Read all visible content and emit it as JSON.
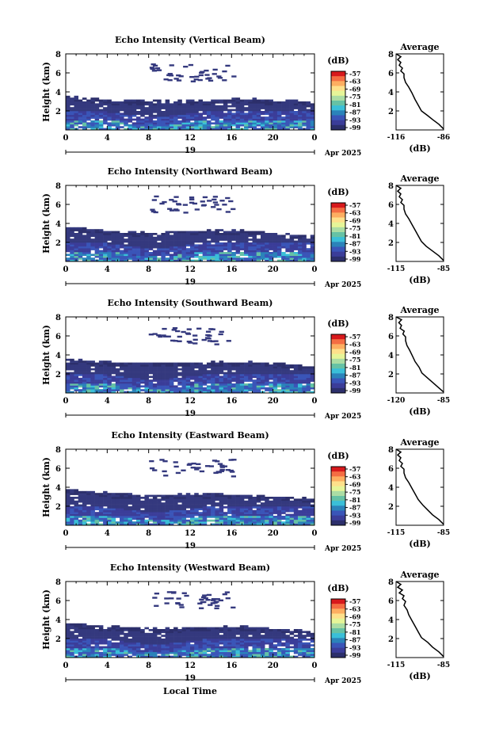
{
  "figure": {
    "bottom_xlabel": "Local Time",
    "date_label": "Apr 2025",
    "colorbar_unit": "(dB)",
    "colorbar_ticks": [
      "-57",
      "-63",
      "-69",
      "-75",
      "-81",
      "-87",
      "-93",
      "-99"
    ],
    "colorbar_colors": [
      "#d7191c",
      "#f46d43",
      "#fdae61",
      "#fee08b",
      "#e6f598",
      "#abdda4",
      "#66c2a5",
      "#3abfd8",
      "#2b83ba",
      "#3a55b8",
      "#3b3d99",
      "#2c2f6b"
    ],
    "echo_color": "#34397e",
    "average_title": "Average",
    "average_xlabel": "(dB)"
  },
  "chart_data": [
    {
      "type": "heatmap",
      "title": "Echo Intensity (Vertical Beam)",
      "ylabel": "Height (km)",
      "xlabel": "",
      "x_ticks": [
        "0",
        "4",
        "8",
        "12",
        "16",
        "20",
        "0"
      ],
      "x_center_label": "19",
      "xlim": [
        0,
        24
      ],
      "ylim": [
        0,
        8
      ],
      "y_ticks": [
        "2",
        "4",
        "6",
        "8"
      ],
      "colorbar_range_dB": [
        -99,
        -57
      ],
      "layer_top_km": [
        3.5,
        3.4,
        3.3,
        3.2,
        3.1,
        3.0,
        3.0,
        3.0,
        3.0,
        3.0,
        3.0,
        3.0,
        3.0,
        3.0,
        3.1,
        3.1,
        3.2,
        3.2,
        3.2,
        3.1,
        3.0,
        3.0,
        3.0,
        2.9,
        2.8
      ],
      "average_profile": {
        "title": "Average",
        "xlabel": "(dB)",
        "x_ticks": [
          "-116",
          "-86"
        ],
        "xlim": [
          -116,
          -86
        ],
        "ylim": [
          0,
          8
        ],
        "y_ticks": [
          "2",
          "4",
          "6",
          "8"
        ],
        "points": [
          [
            -86,
            0.1
          ],
          [
            -89,
            0.6
          ],
          [
            -93,
            1.1
          ],
          [
            -96,
            1.5
          ],
          [
            -100,
            2.0
          ],
          [
            -102,
            2.6
          ],
          [
            -104,
            3.2
          ],
          [
            -106,
            3.9
          ],
          [
            -108,
            4.5
          ],
          [
            -110,
            5.0
          ],
          [
            -111,
            5.5
          ],
          [
            -111,
            5.9
          ],
          [
            -113,
            6.2
          ],
          [
            -112,
            6.5
          ],
          [
            -114,
            6.8
          ],
          [
            -113,
            7.1
          ],
          [
            -115,
            7.4
          ],
          [
            -113,
            7.7
          ],
          [
            -116,
            8.0
          ]
        ]
      }
    },
    {
      "type": "heatmap",
      "title": "Echo Intensity (Northward Beam)",
      "ylabel": "Height (km)",
      "xlabel": "",
      "x_ticks": [
        "0",
        "4",
        "8",
        "12",
        "16",
        "20",
        "0"
      ],
      "x_center_label": "19",
      "xlim": [
        0,
        24
      ],
      "ylim": [
        0,
        8
      ],
      "y_ticks": [
        "2",
        "4",
        "6",
        "8"
      ],
      "colorbar_range_dB": [
        -99,
        -57
      ],
      "layer_top_km": [
        3.6,
        3.5,
        3.4,
        3.3,
        3.2,
        3.1,
        3.1,
        3.0,
        3.0,
        3.0,
        3.1,
        3.1,
        3.1,
        3.1,
        3.2,
        3.2,
        3.2,
        3.2,
        3.1,
        3.0,
        2.9,
        2.8,
        2.7,
        2.6,
        2.6
      ],
      "average_profile": {
        "title": "Average",
        "xlabel": "(dB)",
        "x_ticks": [
          "-115",
          "-85"
        ],
        "xlim": [
          -115,
          -85
        ],
        "ylim": [
          0,
          8
        ],
        "y_ticks": [
          "2",
          "4",
          "6",
          "8"
        ],
        "points": [
          [
            -85,
            0.1
          ],
          [
            -88,
            0.6
          ],
          [
            -92,
            1.1
          ],
          [
            -96,
            1.6
          ],
          [
            -99,
            2.1
          ],
          [
            -101,
            2.7
          ],
          [
            -103,
            3.3
          ],
          [
            -105,
            3.9
          ],
          [
            -107,
            4.5
          ],
          [
            -109,
            5.0
          ],
          [
            -110,
            5.5
          ],
          [
            -110,
            5.9
          ],
          [
            -112,
            6.2
          ],
          [
            -111,
            6.5
          ],
          [
            -113,
            6.8
          ],
          [
            -112,
            7.1
          ],
          [
            -114,
            7.4
          ],
          [
            -112,
            7.7
          ],
          [
            -115,
            8.0
          ]
        ]
      }
    },
    {
      "type": "heatmap",
      "title": "Echo Intensity (Southward Beam)",
      "ylabel": "Height (km)",
      "xlabel": "",
      "x_ticks": [
        "0",
        "4",
        "8",
        "12",
        "16",
        "20",
        "0"
      ],
      "x_center_label": "19",
      "xlim": [
        0,
        24
      ],
      "ylim": [
        0,
        8
      ],
      "y_ticks": [
        "2",
        "4",
        "6",
        "8"
      ],
      "colorbar_range_dB": [
        -99,
        -57
      ],
      "layer_top_km": [
        3.4,
        3.4,
        3.3,
        3.2,
        3.2,
        3.1,
        3.1,
        3.1,
        3.1,
        3.1,
        3.1,
        3.1,
        3.1,
        3.1,
        3.2,
        3.2,
        3.2,
        3.2,
        3.2,
        3.1,
        3.0,
        3.0,
        2.9,
        2.8,
        2.8
      ],
      "average_profile": {
        "title": "Average",
        "xlabel": "(dB)",
        "x_ticks": [
          "-120",
          "-85"
        ],
        "xlim": [
          -120,
          -85
        ],
        "ylim": [
          0,
          8
        ],
        "y_ticks": [
          "2",
          "4",
          "6",
          "8"
        ],
        "points": [
          [
            -85,
            0.1
          ],
          [
            -89,
            0.6
          ],
          [
            -93,
            1.1
          ],
          [
            -97,
            1.6
          ],
          [
            -101,
            2.1
          ],
          [
            -103,
            2.7
          ],
          [
            -106,
            3.3
          ],
          [
            -108,
            3.9
          ],
          [
            -110,
            4.5
          ],
          [
            -112,
            5.0
          ],
          [
            -113,
            5.5
          ],
          [
            -113,
            5.9
          ],
          [
            -115,
            6.2
          ],
          [
            -114,
            6.5
          ],
          [
            -117,
            6.8
          ],
          [
            -116,
            7.1
          ],
          [
            -118,
            7.4
          ],
          [
            -116,
            7.7
          ],
          [
            -120,
            8.0
          ]
        ]
      }
    },
    {
      "type": "heatmap",
      "title": "Echo Intensity (Eastward Beam)",
      "ylabel": "Height (km)",
      "xlabel": "",
      "x_ticks": [
        "0",
        "4",
        "8",
        "12",
        "16",
        "20",
        "0"
      ],
      "x_center_label": "19",
      "xlim": [
        0,
        24
      ],
      "ylim": [
        0,
        8
      ],
      "y_ticks": [
        "2",
        "4",
        "6",
        "8"
      ],
      "colorbar_range_dB": [
        -99,
        -57
      ],
      "layer_top_km": [
        3.7,
        3.6,
        3.5,
        3.4,
        3.3,
        3.2,
        3.2,
        3.1,
        3.1,
        3.1,
        3.2,
        3.2,
        3.2,
        3.2,
        3.2,
        3.2,
        3.2,
        3.1,
        3.1,
        3.0,
        2.9,
        2.9,
        2.8,
        2.8,
        2.8
      ],
      "average_profile": {
        "title": "Average",
        "xlabel": "(dB)",
        "x_ticks": [
          "-115",
          "-85"
        ],
        "xlim": [
          -115,
          -85
        ],
        "ylim": [
          0,
          8
        ],
        "y_ticks": [
          "2",
          "4",
          "6",
          "8"
        ],
        "points": [
          [
            -85,
            0.1
          ],
          [
            -88,
            0.6
          ],
          [
            -92,
            1.1
          ],
          [
            -95,
            1.6
          ],
          [
            -98,
            2.1
          ],
          [
            -101,
            2.7
          ],
          [
            -103,
            3.3
          ],
          [
            -105,
            3.9
          ],
          [
            -107,
            4.5
          ],
          [
            -109,
            5.0
          ],
          [
            -110,
            5.5
          ],
          [
            -110,
            5.9
          ],
          [
            -112,
            6.2
          ],
          [
            -111,
            6.5
          ],
          [
            -113,
            6.8
          ],
          [
            -112,
            7.1
          ],
          [
            -114,
            7.4
          ],
          [
            -112,
            7.7
          ],
          [
            -115,
            8.0
          ]
        ]
      }
    },
    {
      "type": "heatmap",
      "title": "Echo Intensity (Westward Beam)",
      "ylabel": "Height (km)",
      "xlabel": "Local Time",
      "x_ticks": [
        "0",
        "4",
        "8",
        "12",
        "16",
        "20",
        "0"
      ],
      "x_center_label": "19",
      "xlim": [
        0,
        24
      ],
      "ylim": [
        0,
        8
      ],
      "y_ticks": [
        "2",
        "4",
        "6",
        "8"
      ],
      "colorbar_range_dB": [
        -99,
        -57
      ],
      "layer_top_km": [
        3.5,
        3.5,
        3.4,
        3.3,
        3.2,
        3.1,
        3.1,
        3.0,
        3.0,
        3.0,
        3.0,
        3.0,
        3.1,
        3.1,
        3.1,
        3.2,
        3.2,
        3.2,
        3.1,
        3.0,
        2.9,
        2.9,
        2.8,
        2.7,
        2.7
      ],
      "average_profile": {
        "title": "Average",
        "xlabel": "(dB)",
        "x_ticks": [
          "-115",
          "-85"
        ],
        "xlim": [
          -115,
          -85
        ],
        "ylim": [
          0,
          8
        ],
        "y_ticks": [
          "2",
          "4",
          "6",
          "8"
        ],
        "points": [
          [
            -85,
            0.1
          ],
          [
            -88,
            0.6
          ],
          [
            -92,
            1.1
          ],
          [
            -95,
            1.6
          ],
          [
            -99,
            2.1
          ],
          [
            -101,
            2.7
          ],
          [
            -103,
            3.3
          ],
          [
            -105,
            3.9
          ],
          [
            -107,
            4.5
          ],
          [
            -108,
            5.0
          ],
          [
            -110,
            5.5
          ],
          [
            -109,
            5.9
          ],
          [
            -111,
            6.2
          ],
          [
            -110,
            6.5
          ],
          [
            -113,
            6.8
          ],
          [
            -111,
            7.1
          ],
          [
            -114,
            7.4
          ],
          [
            -112,
            7.7
          ],
          [
            -115,
            8.0
          ]
        ]
      }
    }
  ]
}
